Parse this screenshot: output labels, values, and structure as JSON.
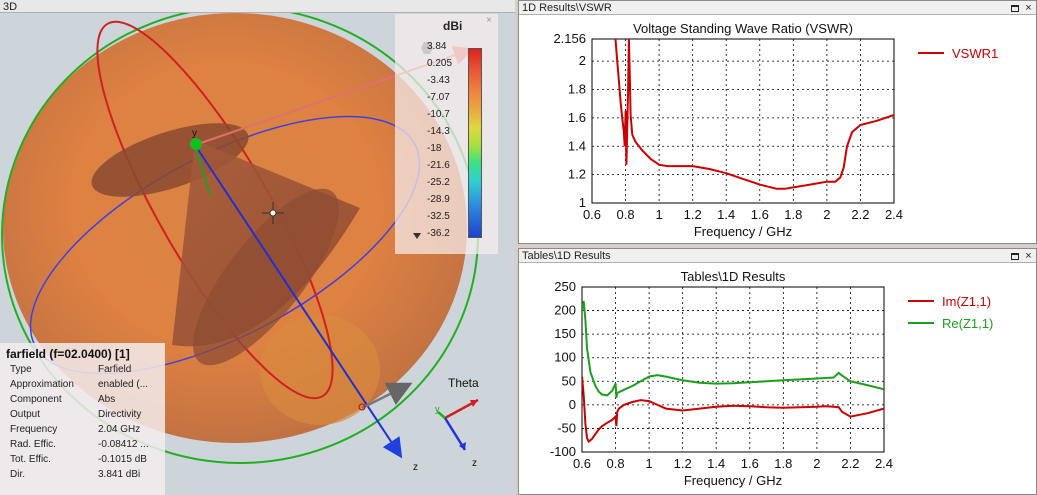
{
  "view3d": {
    "title": "3D",
    "legend": {
      "unit": "dBi",
      "close": "×",
      "labels": [
        "3.84",
        "0.205",
        "-3.43",
        "-7.07",
        "-10.7",
        "-14.3",
        "-18",
        "-21.6",
        "-25.2",
        "-28.9",
        "-32.5",
        "-36.2"
      ]
    },
    "axes": {
      "y": "y",
      "z1": "z",
      "z2": "z",
      "theta": "Theta",
      "y_small": "y"
    },
    "info": {
      "title": "farfield (f=02.0400) [1]",
      "rows": [
        {
          "k": "Type",
          "v": "Farfield"
        },
        {
          "k": "Approximation",
          "v": "enabled (..."
        },
        {
          "k": "Component",
          "v": "Abs"
        },
        {
          "k": "Output",
          "v": "Directivity"
        },
        {
          "k": "Frequency",
          "v": "2.04 GHz"
        },
        {
          "k": "Rad. Effic.",
          "v": "-0.08412 ..."
        },
        {
          "k": "Tot. Effic.",
          "v": "-0.1015 dB"
        },
        {
          "k": "Dir.",
          "v": "3.841 dBi"
        }
      ]
    }
  },
  "vswr_panel": {
    "window_title": "1D Results\\VSWR",
    "maximize": "",
    "close": "×"
  },
  "tables_panel": {
    "window_title": "Tables\\1D Results",
    "maximize": "",
    "close": "×"
  },
  "colors": {
    "red": "#cc0000",
    "green": "#1ca01c",
    "grid": "#000000"
  },
  "chart_data": [
    {
      "type": "line",
      "title": "Voltage Standing Wave Ratio (VSWR)",
      "xlabel": "Frequency / GHz",
      "ylabel": "",
      "xlim": [
        0.6,
        2.4
      ],
      "ylim": [
        1,
        2.156
      ],
      "xticks": [
        "0.6",
        "0.8",
        "1",
        "1.2",
        "1.4",
        "1.6",
        "1.8",
        "2",
        "2.2",
        "2.4"
      ],
      "yticks": [
        "1",
        "1.2",
        "1.4",
        "1.6",
        "1.8",
        "2",
        "2.156"
      ],
      "ytick_values": [
        1,
        1.2,
        1.4,
        1.6,
        1.8,
        2,
        2.156
      ],
      "legend_position": "right",
      "series": [
        {
          "name": "VSWR1",
          "color": "#cc0000",
          "x": [
            0.74,
            0.75,
            0.76,
            0.77,
            0.78,
            0.79,
            0.795,
            0.8,
            0.805,
            0.81,
            0.815,
            0.82,
            0.825,
            0.83,
            0.84,
            0.86,
            0.88,
            0.9,
            0.95,
            1.0,
            1.05,
            1.1,
            1.2,
            1.3,
            1.4,
            1.5,
            1.6,
            1.7,
            1.75,
            1.8,
            1.9,
            1.95,
            2.0,
            2.05,
            2.08,
            2.1,
            2.12,
            2.15,
            2.2,
            2.3,
            2.4
          ],
          "y": [
            2.156,
            2.0,
            1.87,
            1.72,
            1.6,
            1.5,
            1.4,
            1.65,
            1.27,
            1.52,
            1.8,
            2.156,
            1.9,
            1.62,
            1.48,
            1.43,
            1.4,
            1.37,
            1.31,
            1.27,
            1.26,
            1.26,
            1.26,
            1.24,
            1.21,
            1.17,
            1.13,
            1.1,
            1.1,
            1.11,
            1.13,
            1.14,
            1.15,
            1.15,
            1.18,
            1.25,
            1.4,
            1.5,
            1.55,
            1.58,
            1.62
          ]
        }
      ]
    },
    {
      "type": "line",
      "title": "Tables\\1D Results",
      "xlabel": "Frequency / GHz",
      "ylabel": "",
      "xlim": [
        0.6,
        2.4
      ],
      "ylim": [
        -100,
        250
      ],
      "xticks": [
        "0.6",
        "0.8",
        "1",
        "1.2",
        "1.4",
        "1.6",
        "1.8",
        "2",
        "2.2",
        "2.4"
      ],
      "yticks": [
        "-100",
        "-50",
        "0",
        "50",
        "100",
        "150",
        "200",
        "250"
      ],
      "ytick_values": [
        -100,
        -50,
        0,
        50,
        100,
        150,
        200,
        250
      ],
      "legend_position": "right",
      "series": [
        {
          "name": "Im(Z1,1)",
          "color": "#cc0000",
          "x": [
            0.6,
            0.61,
            0.62,
            0.63,
            0.64,
            0.66,
            0.68,
            0.7,
            0.72,
            0.75,
            0.78,
            0.8,
            0.805,
            0.81,
            0.82,
            0.85,
            0.9,
            0.95,
            1.0,
            1.05,
            1.1,
            1.2,
            1.3,
            1.4,
            1.5,
            1.6,
            1.7,
            1.8,
            1.9,
            2.0,
            2.05,
            2.1,
            2.13,
            2.15,
            2.2,
            2.3,
            2.4
          ],
          "y": [
            60,
            20,
            -40,
            -70,
            -78,
            -72,
            -62,
            -52,
            -45,
            -38,
            -32,
            -25,
            -45,
            -15,
            -8,
            0,
            6,
            10,
            8,
            0,
            -8,
            -12,
            -8,
            -4,
            -2,
            -3,
            -5,
            -6,
            -5,
            -4,
            -3,
            -4,
            -5,
            -15,
            -25,
            -18,
            -8
          ]
        },
        {
          "name": "Re(Z1,1)",
          "color": "#1ca01c",
          "x": [
            0.6,
            0.61,
            0.62,
            0.63,
            0.65,
            0.68,
            0.7,
            0.72,
            0.75,
            0.78,
            0.8,
            0.805,
            0.81,
            0.85,
            0.9,
            0.95,
            1.0,
            1.05,
            1.1,
            1.2,
            1.3,
            1.4,
            1.5,
            1.6,
            1.7,
            1.8,
            1.9,
            2.0,
            2.05,
            2.1,
            2.13,
            2.15,
            2.2,
            2.3,
            2.4
          ],
          "y": [
            200,
            220,
            180,
            120,
            70,
            40,
            28,
            22,
            20,
            30,
            45,
            15,
            25,
            32,
            40,
            50,
            60,
            63,
            60,
            52,
            47,
            45,
            46,
            48,
            50,
            52,
            54,
            56,
            57,
            58,
            68,
            62,
            50,
            42,
            33
          ]
        }
      ]
    }
  ]
}
